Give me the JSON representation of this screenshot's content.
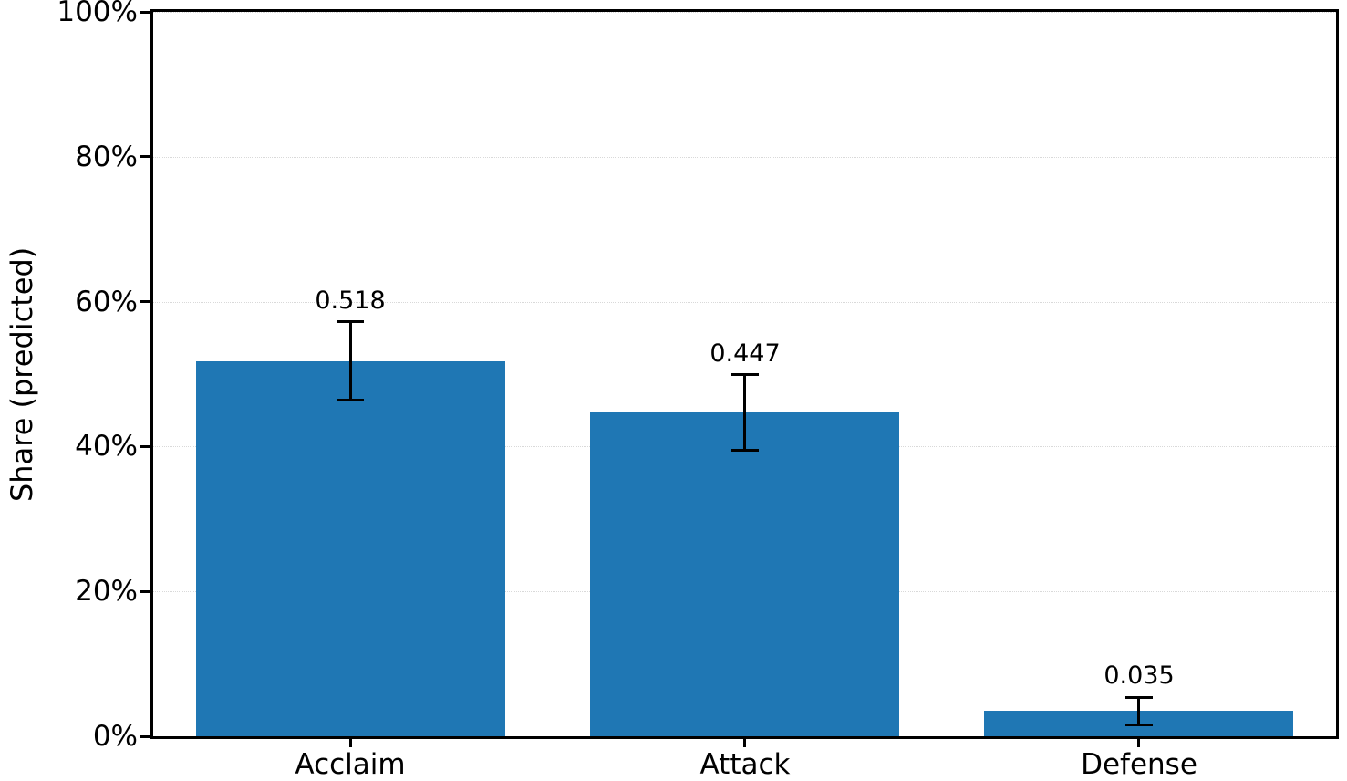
{
  "chart_data": {
    "type": "bar",
    "categories": [
      "Acclaim",
      "Attack",
      "Defense"
    ],
    "values": [
      0.518,
      0.447,
      0.035
    ],
    "errors": [
      0.054,
      0.052,
      0.019
    ],
    "value_labels": [
      "0.518",
      "0.447",
      "0.035"
    ],
    "title": "",
    "xlabel": "",
    "ylabel": "Share (predicted)",
    "ylim": [
      0,
      1
    ],
    "yticks": [
      0,
      0.2,
      0.4,
      0.6,
      0.8,
      1.0
    ],
    "ytick_labels": [
      "0%",
      "20%",
      "40%",
      "60%",
      "80%",
      "100%"
    ],
    "grid": "horizontal-dotted",
    "legend_position": "none",
    "bar_color": "#1f77b4",
    "error_bar_color": "#000000",
    "axis_color": "#000000"
  }
}
